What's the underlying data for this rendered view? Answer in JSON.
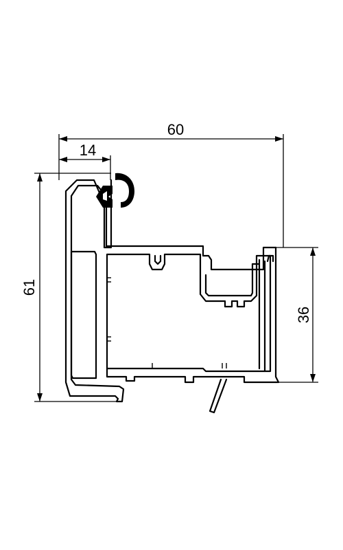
{
  "dimensions": {
    "overall_width": "60",
    "overall_height": "61",
    "offset_width": "14",
    "right_height": "36"
  },
  "colors": {
    "line": "#000000",
    "background": "#ffffff"
  }
}
